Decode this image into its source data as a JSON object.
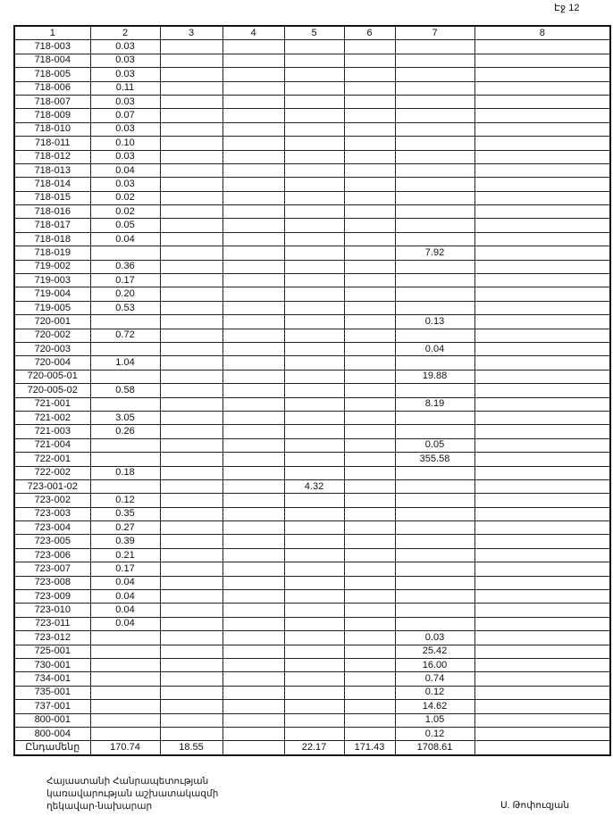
{
  "page_label": "Էջ 12",
  "headers": [
    "1",
    "2",
    "3",
    "4",
    "5",
    "6",
    "7",
    "8"
  ],
  "rows": [
    [
      "718-003",
      "0.03",
      "",
      "",
      "",
      "",
      "",
      ""
    ],
    [
      "718-004",
      "0.03",
      "",
      "",
      "",
      "",
      "",
      ""
    ],
    [
      "718-005",
      "0.03",
      "",
      "",
      "",
      "",
      "",
      ""
    ],
    [
      "718-006",
      "0.11",
      "",
      "",
      "",
      "",
      "",
      ""
    ],
    [
      "718-007",
      "0.03",
      "",
      "",
      "",
      "",
      "",
      ""
    ],
    [
      "718-009",
      "0.07",
      "",
      "",
      "",
      "",
      "",
      ""
    ],
    [
      "718-010",
      "0.03",
      "",
      "",
      "",
      "",
      "",
      ""
    ],
    [
      "718-011",
      "0.10",
      "",
      "",
      "",
      "",
      "",
      ""
    ],
    [
      "718-012",
      "0.03",
      "",
      "",
      "",
      "",
      "",
      ""
    ],
    [
      "718-013",
      "0.04",
      "",
      "",
      "",
      "",
      "",
      ""
    ],
    [
      "718-014",
      "0.03",
      "",
      "",
      "",
      "",
      "",
      ""
    ],
    [
      "718-015",
      "0.02",
      "",
      "",
      "",
      "",
      "",
      ""
    ],
    [
      "718-016",
      "0.02",
      "",
      "",
      "",
      "",
      "",
      ""
    ],
    [
      "718-017",
      "0.05",
      "",
      "",
      "",
      "",
      "",
      ""
    ],
    [
      "718-018",
      "0.04",
      "",
      "",
      "",
      "",
      "",
      ""
    ],
    [
      "718-019",
      "",
      "",
      "",
      "",
      "",
      "7.92",
      ""
    ],
    [
      "719-002",
      "0.36",
      "",
      "",
      "",
      "",
      "",
      ""
    ],
    [
      "719-003",
      "0.17",
      "",
      "",
      "",
      "",
      "",
      ""
    ],
    [
      "719-004",
      "0.20",
      "",
      "",
      "",
      "",
      "",
      ""
    ],
    [
      "719-005",
      "0.53",
      "",
      "",
      "",
      "",
      "",
      ""
    ],
    [
      "720-001",
      "",
      "",
      "",
      "",
      "",
      "0.13",
      ""
    ],
    [
      "720-002",
      "0.72",
      "",
      "",
      "",
      "",
      "",
      ""
    ],
    [
      "720-003",
      "",
      "",
      "",
      "",
      "",
      "0.04",
      ""
    ],
    [
      "720-004",
      "1.04",
      "",
      "",
      "",
      "",
      "",
      ""
    ],
    [
      "720-005-01",
      "",
      "",
      "",
      "",
      "",
      "19.88",
      ""
    ],
    [
      "720-005-02",
      "0.58",
      "",
      "",
      "",
      "",
      "",
      ""
    ],
    [
      "721-001",
      "",
      "",
      "",
      "",
      "",
      "8.19",
      ""
    ],
    [
      "721-002",
      "3.05",
      "",
      "",
      "",
      "",
      "",
      ""
    ],
    [
      "721-003",
      "0.26",
      "",
      "",
      "",
      "",
      "",
      ""
    ],
    [
      "721-004",
      "",
      "",
      "",
      "",
      "",
      "0.05",
      ""
    ],
    [
      "722-001",
      "",
      "",
      "",
      "",
      "",
      "355.58",
      ""
    ],
    [
      "722-002",
      "0.18",
      "",
      "",
      "",
      "",
      "",
      ""
    ],
    [
      "723-001-02",
      "",
      "",
      "",
      "4.32",
      "",
      "",
      ""
    ],
    [
      "723-002",
      "0.12",
      "",
      "",
      "",
      "",
      "",
      ""
    ],
    [
      "723-003",
      "0.35",
      "",
      "",
      "",
      "",
      "",
      ""
    ],
    [
      "723-004",
      "0.27",
      "",
      "",
      "",
      "",
      "",
      ""
    ],
    [
      "723-005",
      "0.39",
      "",
      "",
      "",
      "",
      "",
      ""
    ],
    [
      "723-006",
      "0.21",
      "",
      "",
      "",
      "",
      "",
      ""
    ],
    [
      "723-007",
      "0.17",
      "",
      "",
      "",
      "",
      "",
      ""
    ],
    [
      "723-008",
      "0.04",
      "",
      "",
      "",
      "",
      "",
      ""
    ],
    [
      "723-009",
      "0.04",
      "",
      "",
      "",
      "",
      "",
      ""
    ],
    [
      "723-010",
      "0.04",
      "",
      "",
      "",
      "",
      "",
      ""
    ],
    [
      "723-011",
      "0.04",
      "",
      "",
      "",
      "",
      "",
      ""
    ],
    [
      "723-012",
      "",
      "",
      "",
      "",
      "",
      "0.03",
      ""
    ],
    [
      "725-001",
      "",
      "",
      "",
      "",
      "",
      "25.42",
      ""
    ],
    [
      "730-001",
      "",
      "",
      "",
      "",
      "",
      "16.00",
      ""
    ],
    [
      "734-001",
      "",
      "",
      "",
      "",
      "",
      "0.74",
      ""
    ],
    [
      "735-001",
      "",
      "",
      "",
      "",
      "",
      "0.12",
      ""
    ],
    [
      "737-001",
      "",
      "",
      "",
      "",
      "",
      "14.62",
      ""
    ],
    [
      "800-001",
      "",
      "",
      "",
      "",
      "",
      "1.05",
      ""
    ],
    [
      "800-004",
      "",
      "",
      "",
      "",
      "",
      "0.12",
      ""
    ]
  ],
  "total": [
    "Ընդամենը",
    "170.74",
    "18.55",
    "",
    "22.17",
    "171.43",
    "1708.61",
    ""
  ],
  "footer": {
    "lines": [
      "Հայաստանի Հանրապետության",
      "կառավարության աշխատակազմի",
      "ղեկավար-նախարար"
    ],
    "signer": "Ս. Թոփուզյան"
  }
}
